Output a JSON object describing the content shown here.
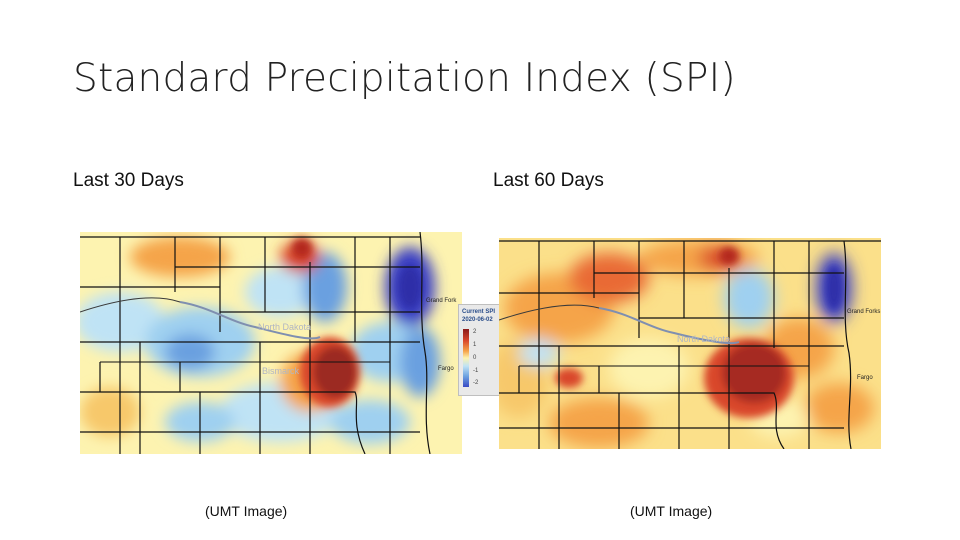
{
  "title": "Standard Precipitation Index (SPI)",
  "panels": [
    {
      "heading": "Last 30 Days",
      "caption": "(UMT Image)"
    },
    {
      "heading": "Last 60 Days",
      "caption": "(UMT Image)"
    }
  ],
  "map_labels": {
    "grand_forks_30": "Grand Fork",
    "grand_forks_60": "Grand Forks",
    "fargo": "Fargo",
    "state_faint": "North Dakota",
    "city_faint": "Bismarck"
  },
  "legend": {
    "title": "Current SPI",
    "date": "2020-06-02",
    "ticks": [
      "2",
      "1",
      "0",
      "-1",
      "-2"
    ]
  },
  "colors": {
    "wet_extreme": "#3a3fc4",
    "wet": "#6aa0e0",
    "wet_light": "#bfe3f5",
    "normal": "#fdf3b0",
    "dry_light": "#f5a44a",
    "dry": "#d9472b",
    "dry_extreme": "#8b1a1a"
  }
}
